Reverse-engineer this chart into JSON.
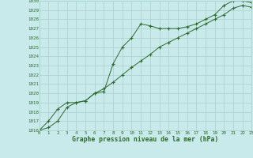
{
  "x": [
    0,
    1,
    2,
    3,
    4,
    5,
    6,
    7,
    8,
    9,
    10,
    11,
    12,
    13,
    14,
    15,
    16,
    17,
    18,
    19,
    20,
    21,
    22,
    23
  ],
  "line1": [
    1016.0,
    1016.3,
    1017.0,
    1018.5,
    1019.0,
    1019.2,
    1020.0,
    1020.5,
    1021.2,
    1022.0,
    1022.8,
    1023.5,
    1024.2,
    1025.0,
    1025.5,
    1026.0,
    1026.5,
    1027.0,
    1027.5,
    1028.0,
    1028.5,
    1029.2,
    1029.5,
    1029.3
  ],
  "line2": [
    1016.0,
    1017.0,
    1018.3,
    1019.0,
    1019.0,
    1019.2,
    1020.0,
    1020.2,
    1023.2,
    1025.0,
    1026.0,
    1027.5,
    1027.3,
    1027.0,
    1027.0,
    1027.0,
    1027.2,
    1027.5,
    1028.0,
    1028.5,
    1029.5,
    1030.0,
    1030.0,
    1029.8
  ],
  "line_color": "#2d6a2d",
  "bg_color": "#c8eaea",
  "grid_color": "#aad0d0",
  "text_color": "#2d6a2d",
  "xlabel": "Graphe pression niveau de la mer (hPa)",
  "ylim": [
    1016,
    1030
  ],
  "xlim": [
    0,
    23
  ],
  "yticks": [
    1016,
    1017,
    1018,
    1019,
    1020,
    1021,
    1022,
    1023,
    1024,
    1025,
    1026,
    1027,
    1028,
    1029,
    1030
  ],
  "xticks": [
    0,
    1,
    2,
    3,
    4,
    5,
    6,
    7,
    8,
    9,
    10,
    11,
    12,
    13,
    14,
    15,
    16,
    17,
    18,
    19,
    20,
    21,
    22,
    23
  ],
  "tick_fontsize": 4.2,
  "xlabel_fontsize": 5.8,
  "marker": "+",
  "markersize": 3.5,
  "linewidth": 0.7
}
